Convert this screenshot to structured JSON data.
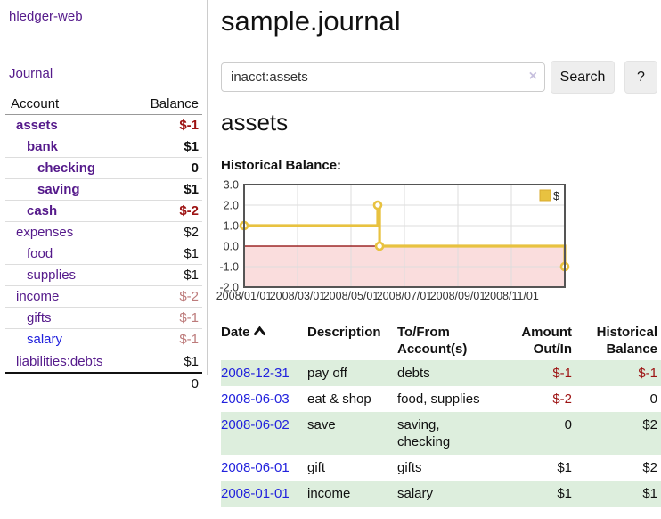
{
  "app": {
    "title": "hledger-web",
    "nav_journal": "Journal"
  },
  "sidebar": {
    "accounts_header": {
      "account": "Account",
      "balance": "Balance"
    },
    "accounts": [
      {
        "name": "assets",
        "depth": 1,
        "bold": true,
        "link": "visited",
        "balance": "$-1",
        "neg": true
      },
      {
        "name": "bank",
        "depth": 2,
        "bold": true,
        "link": "visited",
        "balance": "$1",
        "neg": false
      },
      {
        "name": "checking",
        "depth": 3,
        "bold": true,
        "link": "visited",
        "balance": "0",
        "neg": false
      },
      {
        "name": "saving",
        "depth": 3,
        "bold": true,
        "link": "visited",
        "balance": "$1",
        "neg": false
      },
      {
        "name": "cash",
        "depth": 2,
        "bold": true,
        "link": "visited",
        "balance": "$-2",
        "neg": true
      },
      {
        "name": "expenses",
        "depth": 1,
        "bold": false,
        "link": "visited",
        "balance": "$2",
        "neg": false
      },
      {
        "name": "food",
        "depth": 2,
        "bold": false,
        "link": "visited",
        "balance": "$1",
        "neg": false
      },
      {
        "name": "supplies",
        "depth": 2,
        "bold": false,
        "link": "visited",
        "balance": "$1",
        "neg": false
      },
      {
        "name": "income",
        "depth": 1,
        "bold": false,
        "link": "visited",
        "balance": "$-2",
        "neg": true
      },
      {
        "name": "gifts",
        "depth": 2,
        "bold": false,
        "link": "visited",
        "balance": "$-1",
        "neg": true
      },
      {
        "name": "salary",
        "depth": 2,
        "bold": false,
        "link": "unvisited",
        "balance": "$-1",
        "neg": true
      },
      {
        "name": "liabilities:debts",
        "depth": 1,
        "bold": false,
        "link": "visited",
        "balance": "$1",
        "neg": false
      }
    ],
    "total": "0"
  },
  "header": {
    "journal_title": "sample.journal"
  },
  "search": {
    "value": "inacct:assets",
    "clear_icon": "×",
    "button": "Search",
    "help_button": "?"
  },
  "account_page": {
    "title": "assets",
    "chart_label": "Historical Balance:"
  },
  "chart_data": {
    "type": "line",
    "step": true,
    "title": "Historical Balance:",
    "legend": "$",
    "legend_position": "top-right",
    "ylim": [
      -2,
      3
    ],
    "y_ticks": [
      3.0,
      2.0,
      1.0,
      0.0,
      -1.0,
      -2.0
    ],
    "x_ticks": [
      "2008/01/01",
      "2008/03/01",
      "2008/05/01",
      "2008/07/01",
      "2008/09/01",
      "2008/11/01"
    ],
    "xlim_months": [
      0,
      12
    ],
    "x_months": [
      0,
      5.0,
      5.07,
      12
    ],
    "series": [
      {
        "name": "$",
        "points": [
          {
            "date": "2008-01-01",
            "value": 1
          },
          {
            "date": "2008-06-01",
            "value": 2
          },
          {
            "date": "2008-06-03",
            "value": 0
          },
          {
            "date": "2008-12-31",
            "value": -1
          }
        ]
      }
    ],
    "line_color": "#e8c240",
    "marker_border_color": "#d9ab2e",
    "negative_region_fill": "#fadddd",
    "zero_line_color": "#8b0000",
    "grid_color": "#dddddd",
    "border_color": "#555555"
  },
  "register": {
    "columns": {
      "date": "Date",
      "description": "Description",
      "accounts_line1": "To/From",
      "accounts_line2": "Account(s)",
      "amount_line1": "Amount",
      "amount_line2": "Out/In",
      "balance_line1": "Historical",
      "balance_line2": "Balance"
    },
    "rows": [
      {
        "date": "2008-12-31",
        "description": "pay off",
        "accounts": "debts",
        "amount": "$-1",
        "amount_neg": true,
        "balance": "$-1",
        "balance_neg": true
      },
      {
        "date": "2008-06-03",
        "description": "eat & shop",
        "accounts": "food, supplies",
        "amount": "$-2",
        "amount_neg": true,
        "balance": "0",
        "balance_neg": false
      },
      {
        "date": "2008-06-02",
        "description": "save",
        "accounts": "saving, checking",
        "amount": "0",
        "amount_neg": false,
        "balance": "$2",
        "balance_neg": false
      },
      {
        "date": "2008-06-01",
        "description": "gift",
        "accounts": "gifts",
        "amount": "$1",
        "amount_neg": false,
        "balance": "$2",
        "balance_neg": false
      },
      {
        "date": "2008-01-01",
        "description": "income",
        "accounts": "salary",
        "amount": "$1",
        "amount_neg": false,
        "balance": "$1",
        "balance_neg": false
      }
    ]
  },
  "colors": {
    "link_visited": "#551a8b",
    "link_unvisited": "#2222dd",
    "negative_strong": "#9d1313",
    "negative_muted": "#bd7b7b",
    "row_stripe_green": "#ddeedd"
  }
}
